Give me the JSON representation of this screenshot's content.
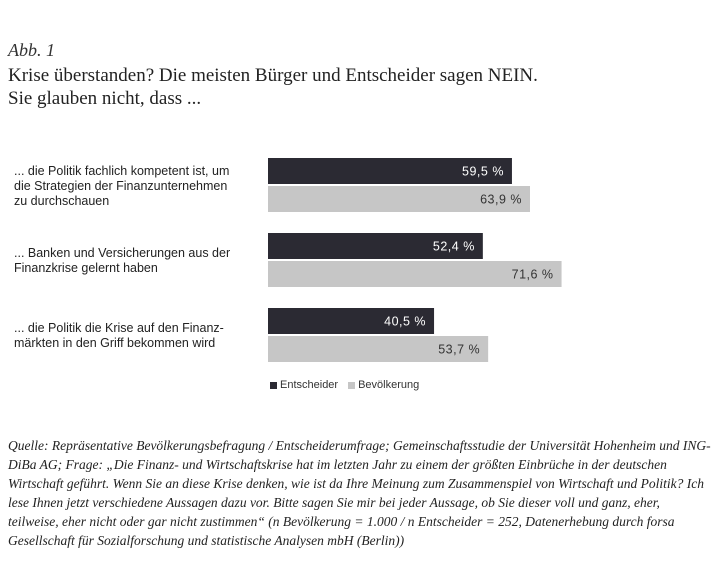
{
  "header": {
    "figure_number": "Abb. 1",
    "title_line1": "Krise überstanden? Die meisten Bürger und Entscheider sagen NEIN.",
    "title_line2": "Sie glauben nicht, dass ..."
  },
  "colors": {
    "entscheider": "#2b2a33",
    "bevoelkerung": "#c6c6c6"
  },
  "chart_data": {
    "type": "bar",
    "orientation": "horizontal",
    "categories": [
      "... die Politik fachlich kompetent ist, um die Strategien der Finanzunternehmen zu durchschauen",
      "... Banken und Versicherungen aus der Finanzkrise gelernt haben",
      "... die Politik die Krise auf den Finanz-märkten in den Griff bekommen wird"
    ],
    "category_lines": [
      [
        "... die Politik fachlich kompetent ist, um",
        "die Strategien der Finanzunternehmen",
        "zu durchschauen"
      ],
      [
        "... Banken und Versicherungen aus der",
        "Finanzkrise gelernt haben"
      ],
      [
        "... die Politik die Krise auf den Finanz-",
        "märkten in den Griff bekommen wird"
      ]
    ],
    "series": [
      {
        "name": "Entscheider",
        "values": [
          59.5,
          52.4,
          40.5
        ],
        "labels": [
          "59,5 %",
          "52,4 %",
          "40,5 %"
        ]
      },
      {
        "name": "Bevölkerung",
        "values": [
          63.9,
          71.6,
          53.7
        ],
        "labels": [
          "63,9 %",
          "71,6 %",
          "53,7 %"
        ]
      }
    ],
    "xlim": [
      0,
      100
    ],
    "grid": false,
    "legend_position": "bottom-left"
  },
  "source": "Quelle: Repräsentative Bevölkerungsbefragung / Entscheiderumfrage; Gemeinschaftsstudie der Universität Hohenheim und ING-DiBa AG; Frage: „Die Finanz- und Wirtschaftskrise hat im letzten Jahr zu einem der größten Einbrüche in der deutschen Wirtschaft geführt. Wenn Sie an diese Krise denken, wie ist da Ihre Meinung zum Zusammenspiel von Wirtschaft und Politik? Ich lese Ihnen jetzt verschiedene Aussagen dazu vor. Bitte sagen Sie mir bei jeder Aussage, ob Sie dieser voll und ganz, eher, teilweise, eher nicht oder gar nicht zustimmen“ (n Bevölkerung = 1.000 / n Entscheider = 252, Datenerhebung durch forsa Gesellschaft für Sozialforschung und statistische Analysen mbH (Berlin))"
}
